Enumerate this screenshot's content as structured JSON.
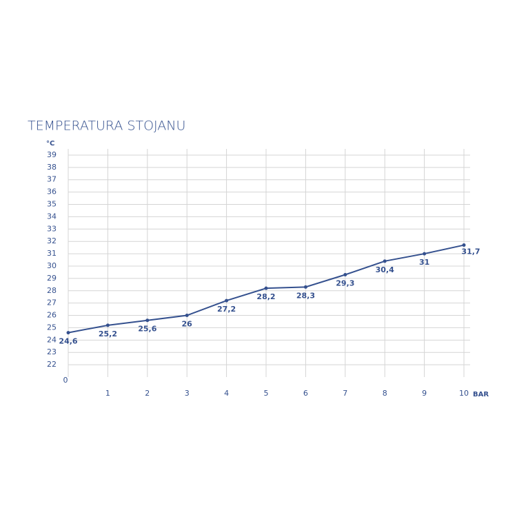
{
  "chart_data": {
    "type": "line",
    "title": "TEMPERATURA STOJANU",
    "y_unit": "°C",
    "x_unit": "BAR",
    "x": [
      0,
      1,
      2,
      3,
      4,
      5,
      6,
      7,
      8,
      9,
      10
    ],
    "values": [
      24.6,
      25.2,
      25.6,
      26,
      27.2,
      28.2,
      28.3,
      29.3,
      30.4,
      31,
      31.7
    ],
    "value_labels": [
      "24,6",
      "25,2",
      "25,6",
      "26",
      "27,2",
      "28,2",
      "28,3",
      "29,3",
      "30,4",
      "31",
      "31,7"
    ],
    "color": "#34508e",
    "xlim": [
      0,
      10
    ],
    "ylim": [
      21,
      39.5
    ],
    "xticks": [
      0,
      1,
      2,
      3,
      4,
      5,
      6,
      7,
      8,
      9,
      10
    ],
    "yticks": [
      22,
      23,
      24,
      25,
      26,
      27,
      28,
      29,
      30,
      31,
      32,
      33,
      34,
      35,
      36,
      37,
      38,
      39
    ],
    "grid": true
  }
}
